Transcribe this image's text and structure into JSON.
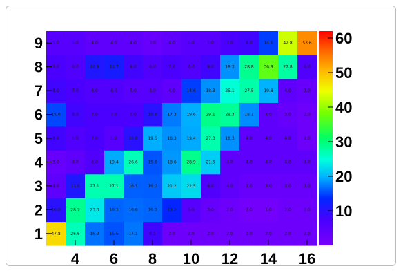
{
  "chart_data": {
    "type": "heatmap",
    "title": "",
    "xlabel": "",
    "ylabel": "",
    "x": [
      3,
      4,
      5,
      6,
      7,
      8,
      9,
      10,
      11,
      12,
      13,
      14,
      15,
      16
    ],
    "y": [
      1,
      2,
      3,
      4,
      5,
      6,
      7,
      8,
      9
    ],
    "x_tick_labels": [
      "4",
      "6",
      "8",
      "10",
      "12",
      "14",
      "16"
    ],
    "y_tick_labels": [
      "1",
      "2",
      "3",
      "4",
      "5",
      "6",
      "7",
      "8",
      "9"
    ],
    "colorbar": {
      "min": 0,
      "max": 62,
      "tick_labels": [
        "10",
        "20",
        "30",
        "40",
        "50",
        "60"
      ]
    },
    "values": [
      [
        47.8,
        26.6,
        16.9,
        15.5,
        17.1,
        8.1,
        2.0,
        2.0,
        2.0,
        2.0,
        2.0,
        2.0,
        2.0,
        2.0
      ],
      [
        10.0,
        28.7,
        23.3,
        16.3,
        16.6,
        16.3,
        13.2,
        5.0,
        3.0,
        2.0,
        1.0,
        1.0,
        2.0,
        2.0
      ],
      [
        4.0,
        11.0,
        27.1,
        27.1,
        16.1,
        16.0,
        21.2,
        22.5,
        6.0,
        4.0,
        3.0,
        3.0,
        3.0,
        3.0
      ],
      [
        3.0,
        4.0,
        6.0,
        19.4,
        26.6,
        15.6,
        18.6,
        28.9,
        21.5,
        4.0,
        4.0,
        4.0,
        4.0,
        4.0
      ],
      [
        8.0,
        6.0,
        7.0,
        5.0,
        10.0,
        19.6,
        18.3,
        19.4,
        27.3,
        18.3,
        4.0,
        4.0,
        4.0,
        2.0
      ],
      [
        15.0,
        8.0,
        7.0,
        7.0,
        7.0,
        10.0,
        17.3,
        19.6,
        29.1,
        28.3,
        18.1,
        4.0,
        3.0,
        2.0
      ],
      [
        8.0,
        7.0,
        6.0,
        6.0,
        5.0,
        5.0,
        4.0,
        14.6,
        18.3,
        25.1,
        27.5,
        19.8,
        4.0,
        3.0
      ],
      [
        7.0,
        6.0,
        10.9,
        11.7,
        8.0,
        6.0,
        7.0,
        6.0,
        8.0,
        18.3,
        28.8,
        36.9,
        27.8,
        6.0
      ],
      [
        5.0,
        5.0,
        4.0,
        4.0,
        4.0,
        3.0,
        4.0,
        5.0,
        5.0,
        7.0,
        8.0,
        14.6,
        42.8,
        53.6
      ]
    ],
    "grid": false
  }
}
